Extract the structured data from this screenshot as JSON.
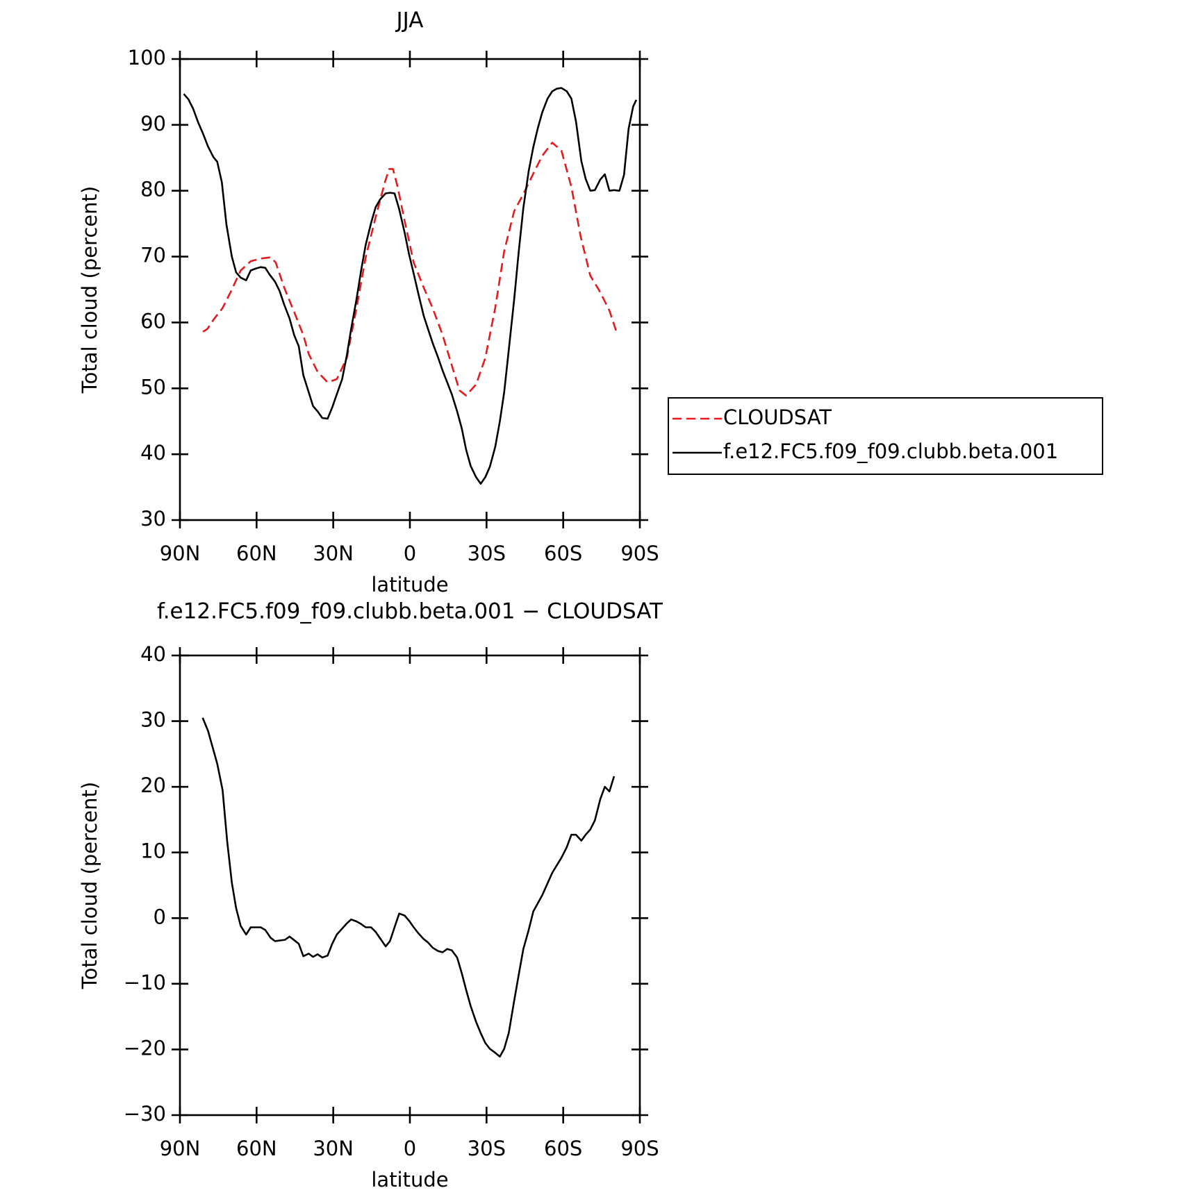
{
  "chart_data": [
    {
      "type": "line",
      "title": "JJA",
      "xlabel": "latitude",
      "ylabel": "Total cloud (percent)",
      "xlim": [
        90,
        -90
      ],
      "ylim": [
        30,
        100
      ],
      "xticks": [
        {
          "value": 90,
          "label": "90N"
        },
        {
          "value": 60,
          "label": "60N"
        },
        {
          "value": 30,
          "label": "30N"
        },
        0,
        {
          "value": -30,
          "label": "30S"
        },
        {
          "value": -60,
          "label": "60S"
        },
        {
          "value": -90,
          "label": "90S"
        }
      ],
      "yticks": [
        30,
        40,
        50,
        60,
        70,
        80,
        90,
        100
      ],
      "legend": "outside right",
      "series": [
        {
          "name": "CLOUDSAT",
          "color": "#e41a1c",
          "line_style": "dashed",
          "x": [
            81,
            79.3,
            76.9,
            73.3,
            69.7,
            66.2,
            62.3,
            58.4,
            54.5,
            52.5,
            49.2,
            45.3,
            41.7,
            39.6,
            36.1,
            32.2,
            28.6,
            24.7,
            20.9,
            17.3,
            13.4,
            9.8,
            8.1,
            6.6,
            4.8,
            2.1,
            -1.5,
            -5.4,
            -8.9,
            -12.8,
            -16.4,
            -19.4,
            -22,
            -25.9,
            -29.5,
            -33.4,
            -36.9,
            -40.8,
            -44.4,
            -48.3,
            -51.8,
            -55.7,
            -59.3,
            -63.2,
            -66.8,
            -70.6,
            -74.2,
            -78.1,
            -81
          ],
          "values": [
            58.6,
            59,
            60.4,
            62.2,
            65,
            67.9,
            69.3,
            69.7,
            69.9,
            69.1,
            65.3,
            61.6,
            58.1,
            55.2,
            52.5,
            50.9,
            51.4,
            54.6,
            62.2,
            69.9,
            76,
            81.3,
            83.3,
            83.3,
            80.6,
            75.5,
            69.1,
            65.3,
            62.2,
            58.1,
            53.5,
            49.7,
            48.9,
            50.6,
            54.6,
            62.2,
            70.8,
            76.9,
            79.5,
            82.6,
            85.3,
            87.3,
            86.1,
            80.6,
            73.1,
            67.1,
            64.8,
            61.8,
            58.4
          ]
        },
        {
          "name": "f.e12.FC5.f09_f09.clubb.beta.001",
          "color": "#000000",
          "line_style": "solid",
          "x": [
            88.5,
            86.7,
            84.9,
            82.8,
            81.1,
            79,
            76.9,
            75.4,
            73.6,
            71.8,
            69.7,
            68,
            66.2,
            64.1,
            62.3,
            60.2,
            58.4,
            56.6,
            54.8,
            52.8,
            51,
            49.2,
            47.1,
            45.3,
            43.5,
            41.7,
            39.6,
            37.9,
            36.1,
            34.3,
            32.2,
            30.4,
            28.6,
            26.5,
            24.7,
            23,
            20.9,
            19.1,
            17.3,
            15.2,
            13.4,
            11.6,
            9.5,
            7.8,
            6,
            4.2,
            2.1,
            0.3,
            -1.5,
            -3.3,
            -5.4,
            -7.1,
            -8.9,
            -11,
            -12.8,
            -14.6,
            -16.4,
            -18.5,
            -20.3,
            -22,
            -23.8,
            -25.9,
            -27.7,
            -29.5,
            -31.3,
            -33.4,
            -35.2,
            -36.9,
            -38.7,
            -40.8,
            -42.6,
            -44.4,
            -46.5,
            -48.3,
            -50,
            -51.8,
            -53.9,
            -55.7,
            -57.5,
            -59.3,
            -61.4,
            -63.2,
            -65,
            -67.1,
            -68.8,
            -70.6,
            -72.4,
            -74.5,
            -76.3,
            -78.1,
            -79.9,
            -82,
            -83.8,
            -85.6,
            -87.4,
            -88.6
          ],
          "values": [
            94.7,
            93.9,
            92.5,
            90.3,
            88.8,
            86.7,
            85.1,
            84.4,
            81.3,
            74.9,
            70,
            67.6,
            66.8,
            66.4,
            67.9,
            68.2,
            68.4,
            68.3,
            67.2,
            66.2,
            64.8,
            62.7,
            60.6,
            58.1,
            56.4,
            52,
            49.4,
            47.3,
            46.5,
            45.5,
            45.4,
            47.1,
            49.1,
            51.4,
            55,
            59,
            63.5,
            67.9,
            71.8,
            75.1,
            77.5,
            78.7,
            79.6,
            79.7,
            79.6,
            77.2,
            73.7,
            70.3,
            67.4,
            64.4,
            61,
            59,
            56.9,
            54.7,
            52.7,
            50.9,
            49.1,
            46.5,
            43.9,
            40.7,
            38.2,
            36.5,
            35.5,
            36.5,
            38.1,
            41.1,
            45,
            49.4,
            55.8,
            63.5,
            70.8,
            77.4,
            83,
            86.6,
            89.4,
            91.9,
            94,
            95.1,
            95.5,
            95.6,
            95.1,
            94,
            90.5,
            84.5,
            81.8,
            80,
            80.1,
            81.7,
            82.5,
            80,
            80.1,
            80,
            82.4,
            89.4,
            92.8,
            93.8
          ]
        }
      ]
    },
    {
      "type": "line",
      "title": "f.e12.FC5.f09_f09.clubb.beta.001 − CLOUDSAT",
      "xlabel": "latitude",
      "ylabel": "Total cloud (percent)",
      "xlim": [
        90,
        -90
      ],
      "ylim": [
        -30,
        40
      ],
      "xticks": [
        {
          "value": 90,
          "label": "90N"
        },
        {
          "value": 60,
          "label": "60N"
        },
        {
          "value": 30,
          "label": "30N"
        },
        0,
        {
          "value": -30,
          "label": "30S"
        },
        {
          "value": -60,
          "label": "60S"
        },
        {
          "value": -90,
          "label": "90S"
        }
      ],
      "yticks": [
        {
          "value": -30,
          "label": "−30"
        },
        {
          "value": -20,
          "label": "−20"
        },
        {
          "value": -10,
          "label": "−10"
        },
        0,
        10,
        20,
        30,
        40
      ],
      "series": [
        {
          "color": "#000000",
          "line_style": "solid",
          "x": [
            81.1,
            79,
            75.4,
            73.3,
            71.5,
            69.7,
            68,
            66.2,
            64.1,
            62.3,
            58.4,
            56.6,
            54.5,
            52.8,
            48.9,
            47.1,
            43.5,
            41.7,
            39.6,
            37.9,
            36.1,
            34.3,
            32.2,
            30.4,
            28.6,
            26.5,
            24.7,
            23,
            20.9,
            19.1,
            17.3,
            15.2,
            13.4,
            11.6,
            9.5,
            7.8,
            6,
            4.2,
            2.1,
            0.3,
            -1.5,
            -3.3,
            -5.4,
            -7.1,
            -8.9,
            -11,
            -12.8,
            -14.6,
            -16.4,
            -18.5,
            -20.3,
            -22,
            -23.8,
            -25.9,
            -27.7,
            -29.5,
            -31.3,
            -33.4,
            -35.2,
            -36.9,
            -38.7,
            -40.8,
            -42.6,
            -44.4,
            -46.5,
            -48.3,
            -51.8,
            -55.7,
            -59.3,
            -61.4,
            -63.2,
            -65,
            -67.1,
            -68.8,
            -70.6,
            -72.4,
            -74.5,
            -76.3,
            -78.1,
            -79.9
          ],
          "values": [
            30.5,
            28.5,
            23.5,
            19.5,
            11.7,
            5.4,
            1.5,
            -1.2,
            -2.5,
            -1.4,
            -1.4,
            -1.8,
            -3,
            -3.5,
            -3.3,
            -2.8,
            -3.9,
            -5.8,
            -5.4,
            -5.9,
            -5.5,
            -6,
            -5.7,
            -3.9,
            -2.5,
            -1.6,
            -0.8,
            -0.2,
            -0.5,
            -0.9,
            -1.4,
            -1.4,
            -2.1,
            -3.1,
            -4.3,
            -3.5,
            -1.4,
            0.7,
            0.4,
            -0.4,
            -1.4,
            -2.3,
            -3.2,
            -3.7,
            -4.5,
            -5,
            -5.2,
            -4.7,
            -4.9,
            -6,
            -8.4,
            -10.9,
            -13.4,
            -15.8,
            -17.5,
            -19,
            -19.9,
            -20.5,
            -21.1,
            -19.9,
            -17.5,
            -12.6,
            -8.6,
            -4.7,
            -1.8,
            1,
            3.5,
            6.9,
            9.2,
            10.8,
            12.7,
            12.7,
            11.8,
            12.7,
            13.5,
            14.9,
            18.1,
            20,
            19.3,
            21.6
          ]
        }
      ]
    }
  ]
}
